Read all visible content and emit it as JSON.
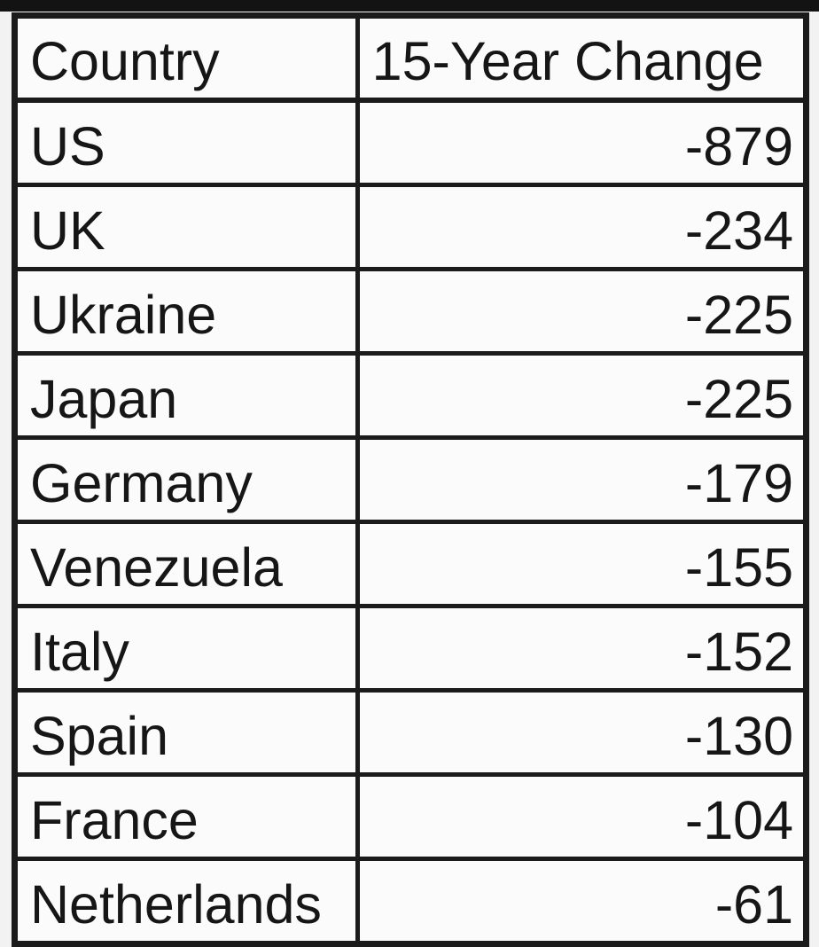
{
  "chart_data": {
    "type": "table",
    "title": "",
    "columns": [
      "Country",
      "15-Year Change"
    ],
    "rows": [
      [
        "US",
        -879
      ],
      [
        "UK",
        -234
      ],
      [
        "Ukraine",
        -225
      ],
      [
        "Japan",
        -225
      ],
      [
        "Germany",
        -179
      ],
      [
        "Venezuela",
        -155
      ],
      [
        "Italy",
        -152
      ],
      [
        "Spain",
        -130
      ],
      [
        "France",
        -104
      ],
      [
        "Netherlands",
        -61
      ]
    ]
  },
  "colors": {
    "top_bar": "#131313",
    "table_border": "#1b1b1b",
    "cell_background": "#fbfbfb",
    "page_background": "#f2f2f2",
    "text": "#161616"
  }
}
